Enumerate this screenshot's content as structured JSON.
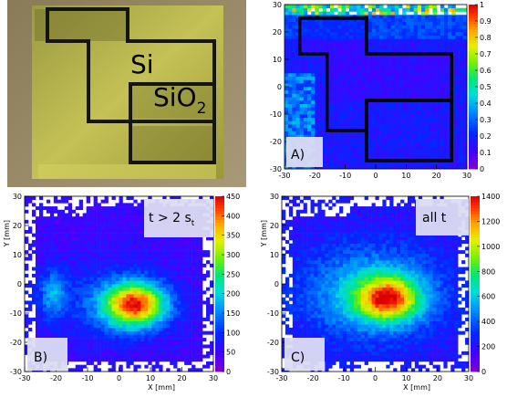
{
  "photo": {
    "label_si": "Si",
    "label_sio": "SiO",
    "label_sio_sub": "2"
  },
  "chart_data": [
    {
      "type": "heatmap",
      "panel_label": "A)",
      "xlabel": "",
      "ylabel": "",
      "xlim": [
        -30,
        30
      ],
      "ylim": [
        -30,
        30
      ],
      "x_ticks": [
        -30,
        -20,
        -10,
        0,
        10,
        20,
        30
      ],
      "y_ticks": [
        -30,
        -20,
        -10,
        0,
        10,
        20,
        30
      ],
      "colorbar": {
        "min": 0,
        "max": 1,
        "ticks": [
          "0",
          "0.1",
          "0.2",
          "0.3",
          "0.4",
          "0.5",
          "0.6",
          "0.7",
          "0.8",
          "0.9",
          "1"
        ]
      }
    },
    {
      "type": "heatmap",
      "panel_label": "B)",
      "annotation": "t > 2 s",
      "annotation_sub": "t",
      "xlabel": "X [mm]",
      "ylabel": "Y [mm]",
      "xlim": [
        -30,
        30
      ],
      "ylim": [
        -30,
        30
      ],
      "x_ticks": [
        -30,
        -20,
        -10,
        0,
        10,
        20,
        30
      ],
      "y_ticks": [
        -30,
        -20,
        -10,
        0,
        10,
        20,
        30
      ],
      "colorbar": {
        "min": 0,
        "max": 450,
        "ticks": [
          "0",
          "50",
          "100",
          "150",
          "200",
          "250",
          "300",
          "350",
          "400",
          "450"
        ]
      }
    },
    {
      "type": "heatmap",
      "panel_label": "C)",
      "annotation": "all t",
      "xlabel": "X [mm]",
      "ylabel": "Y [mm]",
      "xlim": [
        -30,
        30
      ],
      "ylim": [
        -30,
        30
      ],
      "x_ticks": [
        -30,
        -20,
        -10,
        0,
        10,
        20,
        30
      ],
      "y_ticks": [
        -30,
        -20,
        -10,
        0,
        10,
        20,
        30
      ],
      "colorbar": {
        "min": 0,
        "max": 1400,
        "ticks": [
          "0",
          "200",
          "400",
          "600",
          "800",
          "1000",
          "1200",
          "1400"
        ]
      }
    }
  ]
}
